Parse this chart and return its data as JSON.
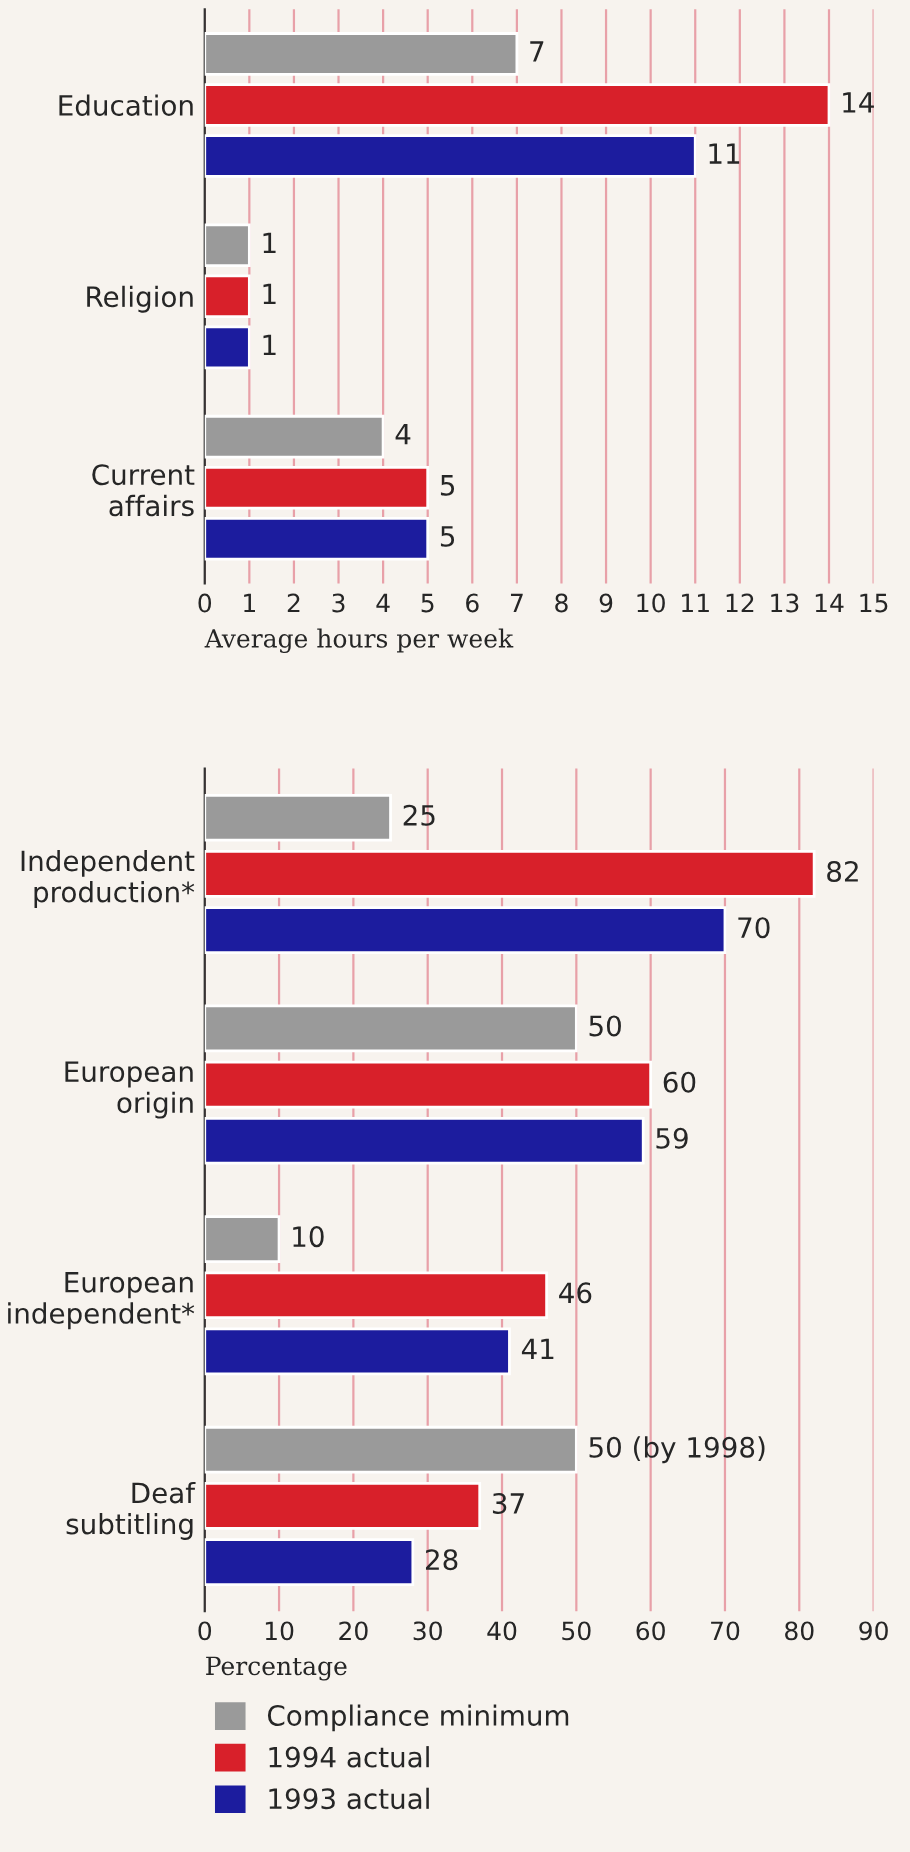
{
  "chart_data": [
    {
      "type": "bar",
      "orientation": "horizontal",
      "categories": [
        "Education",
        "Religion",
        "Current\naffairs"
      ],
      "xlabel": "Average hours per week",
      "xlim": [
        0,
        15
      ],
      "xticks": [
        0,
        1,
        2,
        3,
        4,
        5,
        6,
        7,
        8,
        9,
        10,
        11,
        12,
        13,
        14,
        15
      ],
      "grid": "x",
      "data_labels": true,
      "series": [
        {
          "color": "#9a9a9a",
          "values": [
            7,
            1,
            4
          ]
        },
        {
          "color": "#d8202a",
          "values": [
            14,
            1,
            5
          ]
        },
        {
          "color": "#1c1c9e",
          "values": [
            11,
            1,
            5
          ]
        }
      ]
    },
    {
      "type": "bar",
      "orientation": "horizontal",
      "categories": [
        "Independent\nproduction*",
        "European\norigin",
        "European\nindependent*",
        "Deaf\nsubtitling"
      ],
      "xlabel": "Percentage",
      "xlim": [
        0,
        90
      ],
      "xticks": [
        0,
        10,
        20,
        30,
        40,
        50,
        60,
        70,
        80,
        90
      ],
      "grid": "x",
      "legend": "bottom",
      "series": [
        {
          "name": "Compliance minimum",
          "color": "#9a9a9a",
          "values": [
            25,
            50,
            10,
            50
          ],
          "value_labels": [
            "25",
            "50",
            "10",
            "50 (by 1998)"
          ]
        },
        {
          "name": "1994 actual",
          "color": "#d8202a",
          "values": [
            82,
            60,
            46,
            37
          ],
          "value_labels": [
            "82",
            "60",
            "46",
            "37"
          ]
        },
        {
          "name": "1993 actual",
          "color": "#1c1c9e",
          "values": [
            70,
            59,
            41,
            28
          ],
          "value_labels": [
            "70",
            "59",
            "41",
            "28"
          ]
        }
      ]
    }
  ]
}
